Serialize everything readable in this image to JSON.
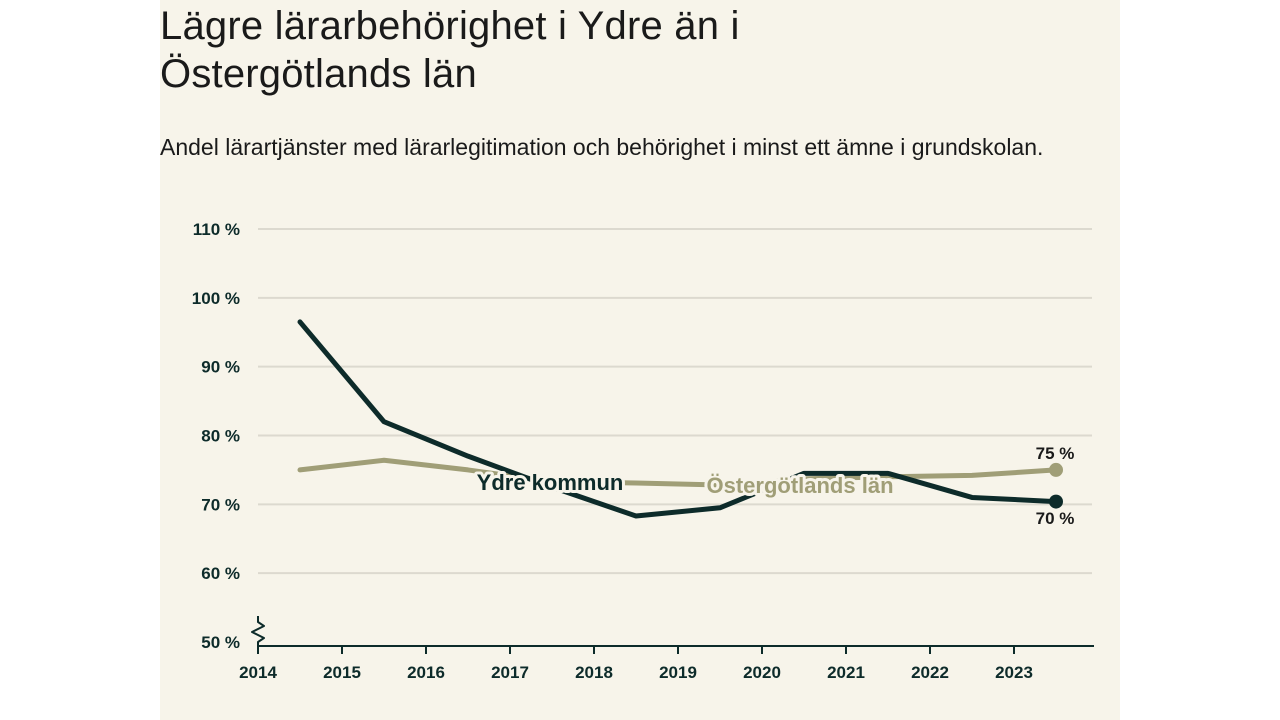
{
  "colors": {
    "background": "#f7f4ea",
    "ydre": "#0d2b2a",
    "lan": "#a09e77",
    "grid": "#dcd9cf",
    "axis": "#0d2b2a"
  },
  "chart_data": {
    "type": "line",
    "title": "Lägre lärarbehörighet i Ydre än i Östergötlands län",
    "subtitle": "Andel lärartjänster med lärarlegitimation och behörighet i minst ett ämne i grundskolan.",
    "xlabel": "",
    "ylabel": "",
    "x_ticks": [
      "2014",
      "2015",
      "2016",
      "2017",
      "2018",
      "2019",
      "2020",
      "2021",
      "2022",
      "2023"
    ],
    "y_ticks": [
      "50 %",
      "60 %",
      "70 %",
      "80 %",
      "90 %",
      "100 %",
      "110 %"
    ],
    "ylim": [
      50,
      110
    ],
    "grid": true,
    "axis_break": true,
    "series": [
      {
        "name": "Ydre kommun",
        "color": "#0d2b2a",
        "x": [
          2014.5,
          2015.5,
          2016.5,
          2017.5,
          2018.5,
          2019.5,
          2020.5,
          2021.5,
          2022.5,
          2023.5
        ],
        "values": [
          96.5,
          82,
          77,
          72.5,
          68.3,
          69.5,
          74.5,
          74.5,
          71,
          70.4
        ],
        "end_label": "70 %"
      },
      {
        "name": "Östergötlands län",
        "color": "#a09e77",
        "x": [
          2014.5,
          2015.5,
          2016.5,
          2017.5,
          2018.5,
          2019.5,
          2020.5,
          2021.5,
          2022.5,
          2023.5
        ],
        "values": [
          75,
          76.4,
          75,
          73.3,
          73.1,
          72.8,
          73.7,
          74,
          74.2,
          75
        ],
        "end_label": "75 %"
      }
    ]
  }
}
